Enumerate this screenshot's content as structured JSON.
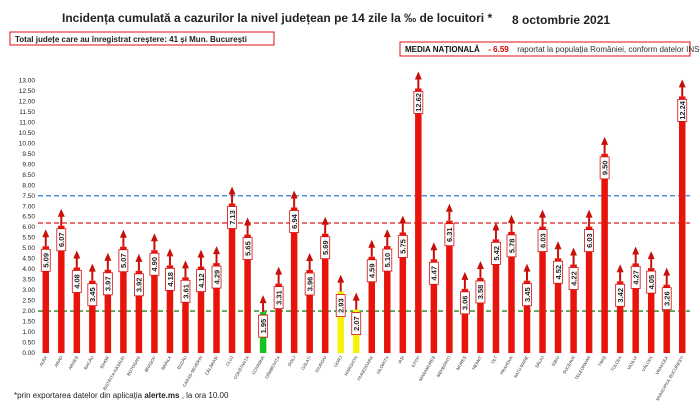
{
  "header": {
    "title": "Incidența cumulată a cazurilor la nivel județean pe 14 zile la ‰ de locuitori *",
    "date": "8 octombrie 2021",
    "total_note": "Total județe care au înregistrat creștere:  41 și Mun. București",
    "media_label": "MEDIA NAȚIONALĂ",
    "media_value": "- 6.59",
    "media_rest": "raportat la populația României, conform datelor INS"
  },
  "footer": {
    "note_prefix": "*prin exportarea datelor din aplicația ",
    "note_bold": "alerte.ms",
    "note_suffix": ", la ora 10.00"
  },
  "colors": {
    "bar": "#e8140c",
    "bar_green": "#18c21a",
    "bar_yellow": "#f3f20a",
    "arrow": "#c8100a",
    "blue_line": "#2a7fd6",
    "red_line": "#d81e1e",
    "green_line": "#1c8a1c"
  },
  "chart_data": {
    "type": "bar",
    "title": "Incidența cumulată a cazurilor la nivel județean pe 14 zile la ‰ de locuitori *",
    "ylim": [
      0,
      13.5
    ],
    "yticks": [
      0.0,
      0.5,
      1.0,
      1.5,
      2.0,
      2.5,
      3.0,
      3.5,
      4.0,
      4.5,
      5.0,
      5.5,
      6.0,
      6.5,
      7.0,
      7.5,
      8.0,
      8.5,
      9.0,
      9.5,
      10.0,
      10.5,
      11.0,
      11.5,
      12.0,
      12.5,
      13.0
    ],
    "reference_lines": [
      {
        "value": 7.5,
        "color": "blue",
        "style": "dashed"
      },
      {
        "value": 6.2,
        "color": "red",
        "style": "dashed"
      },
      {
        "value": 2.0,
        "color": "green",
        "style": "dashed"
      }
    ],
    "trend": "all increasing",
    "categories": [
      "ALBA",
      "ARAD",
      "ARGEȘ",
      "BACĂU",
      "BIHOR",
      "BISTRIȚA-NĂSĂUD",
      "BOTOȘANI",
      "BRAȘOV",
      "BRĂILA",
      "BUZĂU",
      "CARAȘ-SEVERIN",
      "CĂLĂRAȘI",
      "CLUJ",
      "CONSTANȚA",
      "COVASNA",
      "DÂMBOVIȚA",
      "DOLJ",
      "GALAȚI",
      "GIURGIU",
      "GORJ",
      "HARGHITA",
      "HUNEDOARA",
      "IALOMIȚA",
      "IAȘI",
      "ILFOV",
      "MARAMUREȘ",
      "MEHEDINȚI",
      "MUREȘ",
      "NEAMȚ",
      "OLT",
      "PRAHOVA",
      "SATU MARE",
      "SĂLAJ",
      "SIBIU",
      "SUCEAVA",
      "TELEORMAN",
      "TIMIȘ",
      "TULCEA",
      "VASLUI",
      "VÂLCEA",
      "VRANCEA",
      "MUNICIPIUL BUCUREȘTI"
    ],
    "values": [
      5.09,
      6.07,
      4.08,
      3.45,
      3.97,
      5.07,
      3.92,
      4.9,
      4.18,
      3.61,
      4.12,
      4.29,
      7.13,
      5.65,
      1.95,
      3.31,
      6.94,
      3.96,
      5.69,
      2.93,
      2.07,
      4.59,
      5.1,
      5.75,
      12.62,
      4.47,
      6.31,
      3.06,
      3.58,
      5.42,
      5.78,
      3.45,
      6.03,
      4.52,
      4.22,
      6.03,
      9.5,
      3.42,
      4.27,
      4.05,
      3.26,
      12.24
    ],
    "bar_colors": [
      "red",
      "red",
      "red",
      "red",
      "red",
      "red",
      "red",
      "red",
      "red",
      "red",
      "red",
      "red",
      "red",
      "red",
      "green",
      "red",
      "red",
      "red",
      "red",
      "yellow",
      "yellow",
      "red",
      "red",
      "red",
      "red",
      "red",
      "red",
      "red",
      "red",
      "red",
      "red",
      "red",
      "red",
      "red",
      "red",
      "red",
      "red",
      "red",
      "red",
      "red",
      "red",
      "red"
    ]
  }
}
